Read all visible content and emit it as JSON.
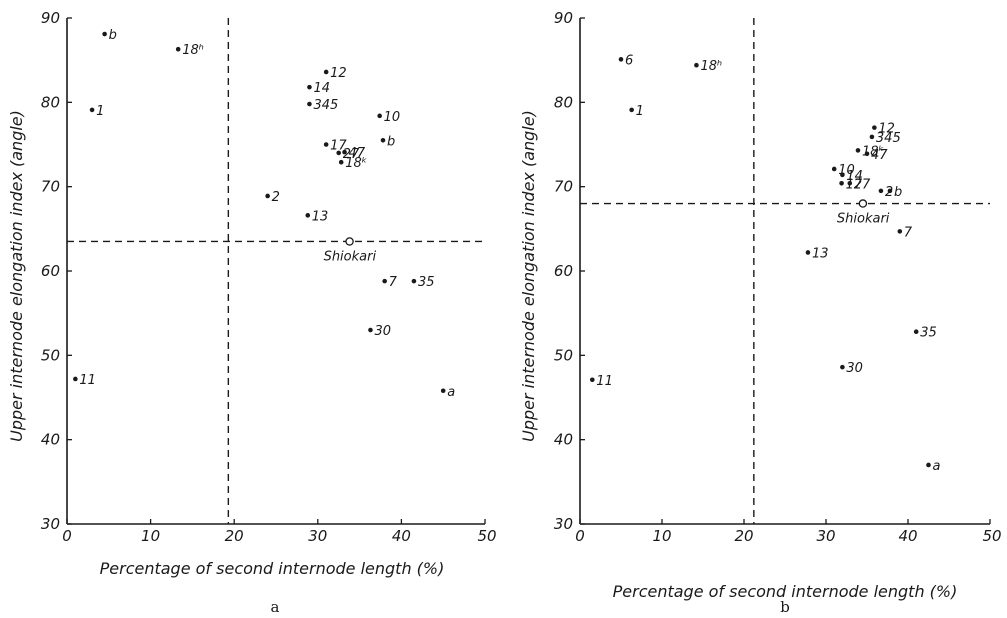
{
  "chart_data": [
    {
      "type": "scatter",
      "panel_label": "a",
      "xlabel": "Percentage of second internode length (%)",
      "ylabel": "Upper internode elongation index (angle)",
      "xlim": [
        0,
        50
      ],
      "ylim": [
        30,
        90
      ],
      "x_ticks": [
        0,
        10,
        20,
        30,
        40,
        50
      ],
      "y_ticks": [
        30,
        40,
        50,
        60,
        70,
        80,
        90
      ],
      "x_tick_labels": [
        "0",
        "10",
        "20",
        "30",
        "40",
        "50"
      ],
      "y_tick_labels": [
        "30",
        "40",
        "50",
        "60",
        "70",
        "80",
        "90"
      ],
      "grid": false,
      "ref_lines": {
        "x": 19.3,
        "y": 63.5
      },
      "points": [
        {
          "label": "b",
          "x": 4.5,
          "y": 88.1
        },
        {
          "label": "18ʰ",
          "x": 13.3,
          "y": 86.3
        },
        {
          "label": "1",
          "x": 3.0,
          "y": 79.1
        },
        {
          "label": "12",
          "x": 31.0,
          "y": 83.6
        },
        {
          "label": "14",
          "x": 29.0,
          "y": 81.8
        },
        {
          "label": "345",
          "x": 29.0,
          "y": 79.8
        },
        {
          "label": "10",
          "x": 37.4,
          "y": 78.4
        },
        {
          "label": "b",
          "x": 37.8,
          "y": 75.5
        },
        {
          "label": "17",
          "x": 31.0,
          "y": 75.0
        },
        {
          "label": "27",
          "x": 32.5,
          "y": 74.0
        },
        {
          "label": "47",
          "x": 33.2,
          "y": 74.1
        },
        {
          "label": "18ᵏ",
          "x": 32.8,
          "y": 72.9
        },
        {
          "label": "2",
          "x": 24.0,
          "y": 68.9
        },
        {
          "label": "13",
          "x": 28.8,
          "y": 66.6
        },
        {
          "label": "Shiokari",
          "x": 33.8,
          "y": 63.5,
          "marker": "open"
        },
        {
          "label": "7",
          "x": 38.0,
          "y": 58.8
        },
        {
          "label": "35",
          "x": 41.5,
          "y": 58.8
        },
        {
          "label": "30",
          "x": 36.3,
          "y": 53.0
        },
        {
          "label": "11",
          "x": 1.0,
          "y": 47.2
        },
        {
          "label": "a",
          "x": 45.0,
          "y": 45.8
        }
      ]
    },
    {
      "type": "scatter",
      "panel_label": "b",
      "xlabel": "Percentage of second internode length (%)",
      "ylabel": "Upper internode elongation index (angle)",
      "xlim": [
        0,
        50
      ],
      "ylim": [
        30,
        90
      ],
      "x_ticks": [
        0,
        10,
        20,
        30,
        40,
        50
      ],
      "y_ticks": [
        30,
        40,
        50,
        60,
        70,
        80,
        90
      ],
      "x_tick_labels": [
        "0",
        "10",
        "20",
        "30",
        "40",
        "50"
      ],
      "y_tick_labels": [
        "30",
        "40",
        "50",
        "60",
        "70",
        "80",
        "90"
      ],
      "grid": false,
      "ref_lines": {
        "x": 21.2,
        "y": 68.0
      },
      "points": [
        {
          "label": "6",
          "x": 5.0,
          "y": 85.1
        },
        {
          "label": "18ʰ",
          "x": 14.2,
          "y": 84.4
        },
        {
          "label": "1",
          "x": 6.3,
          "y": 79.1
        },
        {
          "label": "12",
          "x": 35.9,
          "y": 77.0
        },
        {
          "label": "345",
          "x": 35.6,
          "y": 75.9
        },
        {
          "label": "18ᵏ",
          "x": 33.9,
          "y": 74.3
        },
        {
          "label": "47",
          "x": 35.0,
          "y": 73.9
        },
        {
          "label": "10",
          "x": 31.0,
          "y": 72.1
        },
        {
          "label": "14",
          "x": 32.0,
          "y": 71.4
        },
        {
          "label": "17",
          "x": 31.9,
          "y": 70.4
        },
        {
          "label": "27",
          "x": 32.9,
          "y": 70.4
        },
        {
          "label": "2",
          "x": 36.7,
          "y": 69.5
        },
        {
          "label": "b",
          "x": 37.8,
          "y": 69.5
        },
        {
          "label": "Shiokari",
          "x": 34.5,
          "y": 68.0,
          "marker": "open"
        },
        {
          "label": "7",
          "x": 39.0,
          "y": 64.7
        },
        {
          "label": "13",
          "x": 27.8,
          "y": 62.2
        },
        {
          "label": "35",
          "x": 41.0,
          "y": 52.8
        },
        {
          "label": "30",
          "x": 32.0,
          "y": 48.6
        },
        {
          "label": "11",
          "x": 1.5,
          "y": 47.1
        },
        {
          "label": "a",
          "x": 42.5,
          "y": 37.0
        }
      ]
    }
  ]
}
